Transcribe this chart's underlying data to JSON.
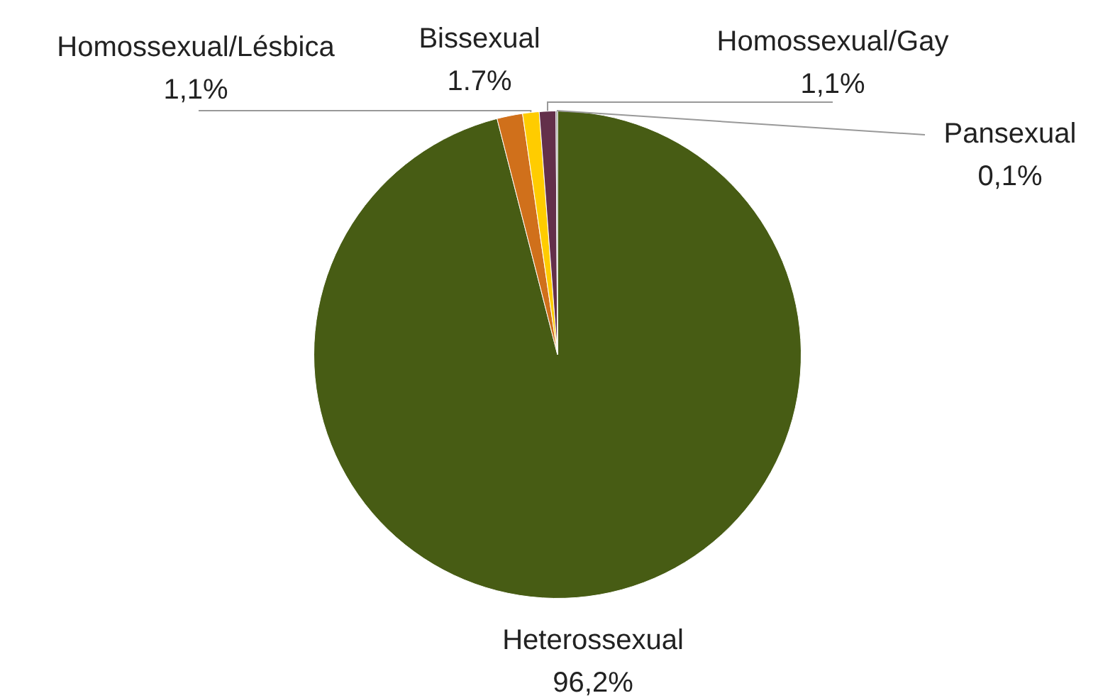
{
  "chart_data": {
    "type": "pie",
    "categories": [
      "Heterossexual",
      "Bissexual",
      "Homossexual/Lésbica",
      "Homossexual/Gay",
      "Pansexual"
    ],
    "values": [
      96.2,
      1.7,
      1.1,
      1.1,
      0.1
    ],
    "value_labels": [
      "96,2%",
      "1.7%",
      "1,1%",
      "1,1%",
      "0,1%"
    ],
    "colors": [
      "#475c14",
      "#d0701b",
      "#ffcc00",
      "#632f4a",
      "#7f7f7f"
    ],
    "legend": false
  }
}
